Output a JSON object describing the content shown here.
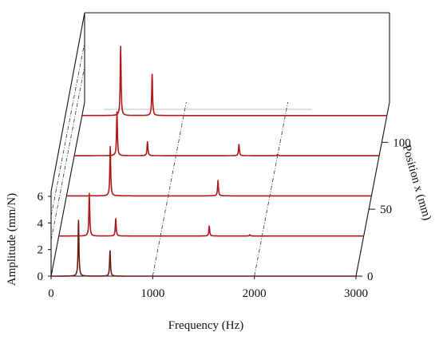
{
  "chart_data": {
    "type": "line",
    "subtype": "waterfall-3d",
    "xlabel": "Frequency (Hz)",
    "ylabel": "Amplitude (mm/N)",
    "zlabel": "Position x (mm)",
    "xlim": [
      0,
      3000
    ],
    "ylim": [
      0,
      6
    ],
    "zlim": [
      0,
      130
    ],
    "x_ticks": [
      "0",
      "1000",
      "2000",
      "3000"
    ],
    "y_ticks": [
      "0",
      "2",
      "4",
      "6"
    ],
    "z_ticks": [
      "0",
      "50",
      "100"
    ],
    "grid": true,
    "line_color": "#b01818",
    "series": [
      {
        "position": 0,
        "peaks": [
          {
            "x": 270,
            "y": 4.2
          },
          {
            "x": 580,
            "y": 1.9
          }
        ]
      },
      {
        "position": 30,
        "peaks": [
          {
            "x": 300,
            "y": 3.2
          },
          {
            "x": 560,
            "y": 1.3
          },
          {
            "x": 1480,
            "y": 0.75
          },
          {
            "x": 1880,
            "y": 0.1
          }
        ]
      },
      {
        "position": 60,
        "peaks": [
          {
            "x": 430,
            "y": 3.7
          },
          {
            "x": 1490,
            "y": 1.15
          }
        ]
      },
      {
        "position": 90,
        "peaks": [
          {
            "x": 420,
            "y": 3.3
          },
          {
            "x": 720,
            "y": 1.05
          },
          {
            "x": 1620,
            "y": 0.85
          },
          {
            "x": 2000,
            "y": 0.1
          }
        ]
      },
      {
        "position": 120,
        "peaks": [
          {
            "x": 380,
            "y": 5.2
          },
          {
            "x": 690,
            "y": 3.1
          }
        ]
      }
    ]
  }
}
